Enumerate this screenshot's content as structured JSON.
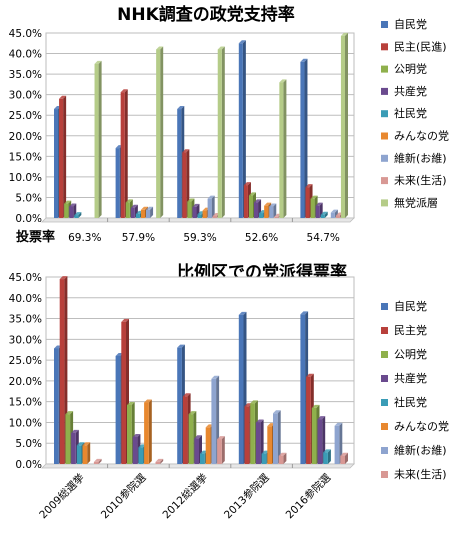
{
  "chart_data": [
    {
      "type": "bar",
      "title": "NHK調査の政党支持率",
      "ylim": [
        0,
        45
      ],
      "y_ticks": [
        "0.0%",
        "5.0%",
        "10.0%",
        "15.0%",
        "20.0%",
        "25.0%",
        "30.0%",
        "35.0%",
        "40.0%",
        "45.0%"
      ],
      "grid": true,
      "legend_position": "right",
      "turnout_label": "投票率",
      "turnout": [
        "69.3%",
        "57.9%",
        "59.3%",
        "52.6%",
        "54.7%"
      ],
      "series": [
        {
          "name": "自民党",
          "color": "#4a76b8",
          "values": [
            26.5,
            17.0,
            26.5,
            42.5,
            38.0
          ]
        },
        {
          "name": "民主(民進)",
          "color": "#b8403b",
          "values": [
            29.0,
            30.6,
            16.0,
            8.0,
            7.5
          ]
        },
        {
          "name": "公明党",
          "color": "#8fb04c",
          "values": [
            3.5,
            3.8,
            4.0,
            5.5,
            4.7
          ]
        },
        {
          "name": "共産党",
          "color": "#6a4a8e",
          "values": [
            2.8,
            2.5,
            2.7,
            3.8,
            3.0
          ]
        },
        {
          "name": "社民党",
          "color": "#3a9cb6",
          "values": [
            0.7,
            1.0,
            0.9,
            1.2,
            0.8
          ]
        },
        {
          "name": "みんなの党",
          "color": "#e8882f",
          "values": [
            0.0,
            2.0,
            1.8,
            3.0,
            0.0
          ]
        },
        {
          "name": "維新(お維)",
          "color": "#8ea4cf",
          "values": [
            0.0,
            2.0,
            4.7,
            2.8,
            1.3
          ]
        },
        {
          "name": "未来(生活)",
          "color": "#d89894",
          "values": [
            0.0,
            0.0,
            0.5,
            0.3,
            0.6
          ]
        },
        {
          "name": "無党派層",
          "color": "#b5cc88",
          "values": [
            37.5,
            41.0,
            41.0,
            33.0,
            44.3
          ]
        }
      ]
    },
    {
      "type": "bar",
      "title": "比例区での党派得票率",
      "ylim": [
        0,
        45
      ],
      "y_ticks": [
        "0.0%",
        "5.0%",
        "10.0%",
        "15.0%",
        "20.0%",
        "25.0%",
        "30.0%",
        "35.0%",
        "40.0%",
        "45.0%"
      ],
      "grid": true,
      "legend_position": "right",
      "categories": [
        "2009総選挙",
        "2010参院選",
        "2012総選挙",
        "2013参院選",
        "2016参院選"
      ],
      "series": [
        {
          "name": "自民党",
          "color": "#4a76b8",
          "values": [
            27.8,
            26.0,
            28.0,
            35.9,
            36.0
          ]
        },
        {
          "name": "民主党",
          "color": "#b8403b",
          "values": [
            44.5,
            34.2,
            16.3,
            13.9,
            21.0
          ]
        },
        {
          "name": "公明党",
          "color": "#8fb04c",
          "values": [
            12.0,
            14.2,
            12.0,
            14.6,
            13.5
          ]
        },
        {
          "name": "共産党",
          "color": "#6a4a8e",
          "values": [
            7.5,
            6.5,
            6.2,
            10.0,
            10.8
          ]
        },
        {
          "name": "社民党",
          "color": "#3a9cb6",
          "values": [
            4.5,
            4.0,
            2.5,
            2.5,
            2.8
          ]
        },
        {
          "name": "みんなの党",
          "color": "#e8882f",
          "values": [
            4.5,
            14.8,
            8.8,
            9.1,
            0.0
          ]
        },
        {
          "name": "維新(お維)",
          "color": "#8ea4cf",
          "values": [
            0.0,
            0.0,
            20.5,
            12.2,
            9.2
          ]
        },
        {
          "name": "未来(生活)",
          "color": "#d89894",
          "values": [
            0.5,
            0.5,
            6.0,
            2.0,
            2.0
          ]
        }
      ]
    }
  ]
}
